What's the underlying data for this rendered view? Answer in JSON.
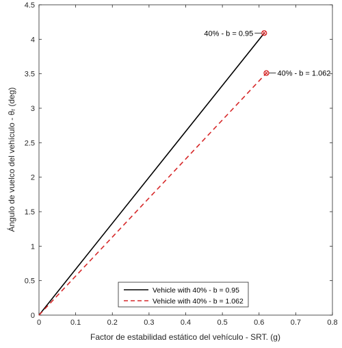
{
  "chart_data": {
    "type": "line",
    "xlabel": "Factor de estabilidad estático del vehículo - SRT. (g)",
    "ylabel": "Ángulo de vuelco del vehículo - θᵣ (deg)",
    "xlim": [
      0,
      0.8
    ],
    "ylim": [
      0,
      4.5
    ],
    "xticks": [
      "0",
      "0.1",
      "0.2",
      "0.3",
      "0.4",
      "0.5",
      "0.6",
      "0.7",
      "0.8"
    ],
    "yticks": [
      "0",
      "0.5",
      "1",
      "1.5",
      "2",
      "2.5",
      "3",
      "3.5",
      "4",
      "4.5"
    ],
    "grid": false,
    "legend_position": "bottom-center",
    "series": [
      {
        "name": "Vehicle with 40% - b = 0.95",
        "color": "#000000",
        "style": "solid",
        "x": [
          0,
          0.614
        ],
        "y": [
          0,
          4.09
        ]
      },
      {
        "name": "Vehicle with 40% - b = 1.062",
        "color": "#d62728",
        "style": "dashed",
        "x": [
          0,
          0.62
        ],
        "y": [
          0,
          3.51
        ]
      }
    ],
    "annotations": [
      {
        "text": "40% - b = 0.95",
        "x": 0.614,
        "y": 4.09,
        "side": "left"
      },
      {
        "text": "40% - b = 1.062",
        "x": 0.62,
        "y": 3.51,
        "side": "right"
      }
    ]
  }
}
